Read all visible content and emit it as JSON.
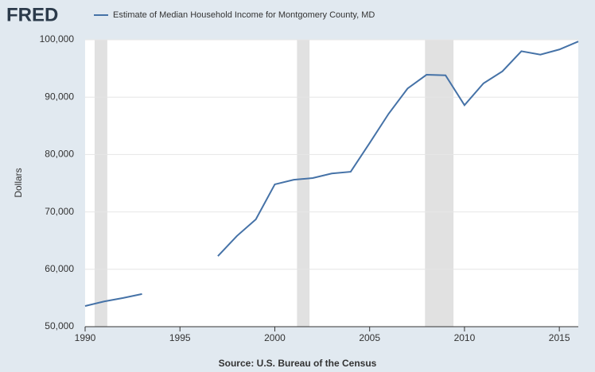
{
  "brand": "FRED",
  "chart_data": {
    "type": "line",
    "x": [
      1990,
      1991,
      1992,
      1993,
      1994,
      1995,
      1996,
      1997,
      1998,
      1999,
      2000,
      2001,
      2002,
      2003,
      2004,
      2005,
      2006,
      2007,
      2008,
      2009,
      2010,
      2011,
      2012,
      2013,
      2014,
      2015,
      2016
    ],
    "series": [
      {
        "name": "Estimate of Median Household Income for Montgomery County, MD",
        "color": "#4572a7",
        "values": [
          53600,
          54400,
          55000,
          55700,
          null,
          null,
          null,
          62300,
          65800,
          68700,
          74800,
          75600,
          75900,
          76700,
          77000,
          82000,
          87100,
          91500,
          93900,
          93800,
          88600,
          92400,
          94500,
          98000,
          97400,
          98300,
          99700
        ]
      }
    ],
    "recessions": [
      [
        1990.5,
        1991.17
      ],
      [
        2001.17,
        2001.83
      ],
      [
        2007.92,
        2009.42
      ]
    ],
    "recession_color": "#e1e1e1",
    "xlim": [
      1990,
      2016
    ],
    "xticks": [
      1990,
      1995,
      2000,
      2005,
      2010,
      2015
    ],
    "ylim": [
      50000,
      100000
    ],
    "yticks": [
      {
        "value": 50000,
        "label": "50,000"
      },
      {
        "value": 60000,
        "label": "60,000"
      },
      {
        "value": 70000,
        "label": "70,000"
      },
      {
        "value": 80000,
        "label": "80,000"
      },
      {
        "value": 90000,
        "label": "90,000"
      },
      {
        "value": 100000,
        "label": "100,000"
      }
    ],
    "y_label": "Dollars",
    "source": "Source: U.S. Bureau of the Census",
    "grid": true
  }
}
